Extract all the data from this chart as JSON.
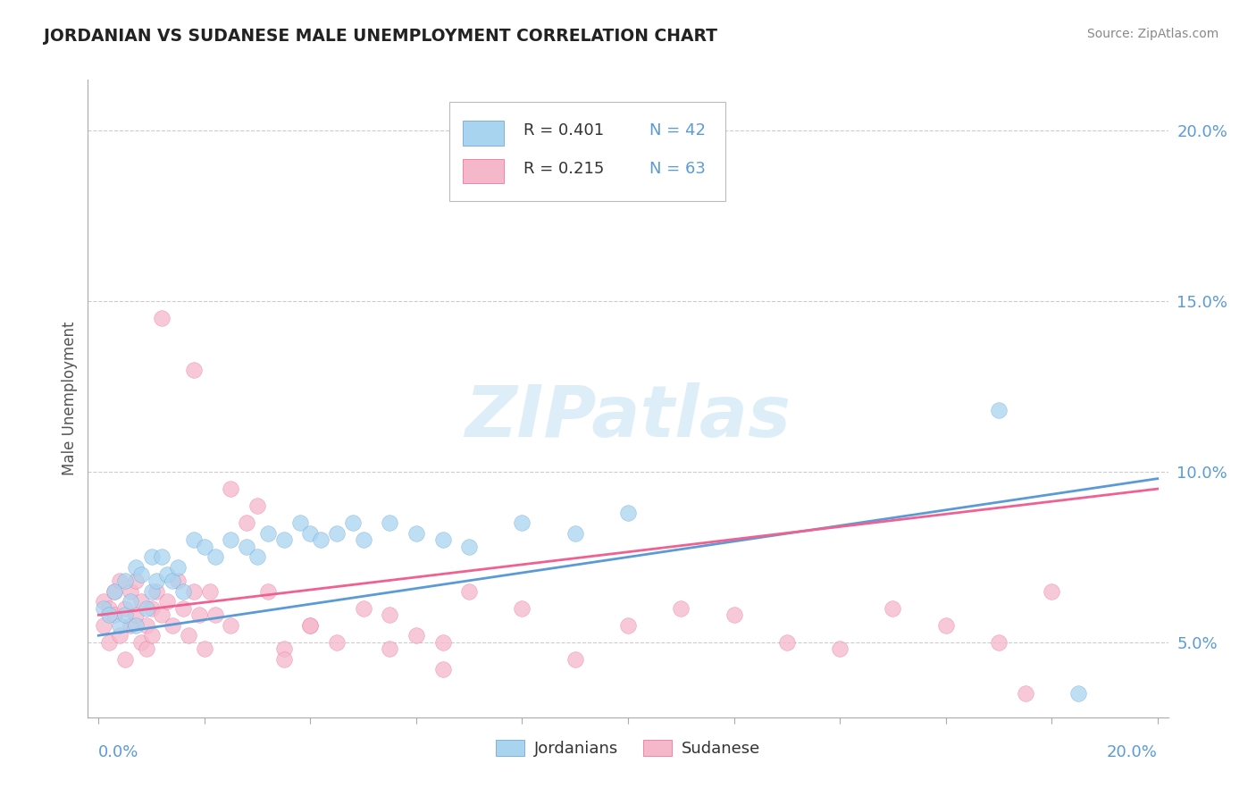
{
  "title": "JORDANIAN VS SUDANESE MALE UNEMPLOYMENT CORRELATION CHART",
  "source": "Source: ZipAtlas.com",
  "ylabel": "Male Unemployment",
  "ylabel_right_ticks": [
    "5.0%",
    "10.0%",
    "15.0%",
    "20.0%"
  ],
  "ylabel_right_values": [
    0.05,
    0.1,
    0.15,
    0.2
  ],
  "xlim": [
    -0.002,
    0.202
  ],
  "ylim": [
    0.028,
    0.215
  ],
  "legend_r1": "R = 0.401",
  "legend_n1": "N = 42",
  "legend_r2": "R = 0.215",
  "legend_n2": "N = 63",
  "color_jordanian": "#a8d4f0",
  "color_sudanese": "#f5b8cb",
  "color_line_jordanian": "#5b9bd5",
  "color_line_sudanese": "#f06090",
  "watermark_color": "#c8e4f5",
  "watermark": "ZIPatlas",
  "jordanian_x": [
    0.001,
    0.002,
    0.003,
    0.004,
    0.005,
    0.005,
    0.006,
    0.007,
    0.007,
    0.008,
    0.009,
    0.01,
    0.01,
    0.011,
    0.012,
    0.013,
    0.014,
    0.015,
    0.016,
    0.018,
    0.02,
    0.022,
    0.025,
    0.028,
    0.03,
    0.032,
    0.035,
    0.038,
    0.04,
    0.042,
    0.045,
    0.048,
    0.05,
    0.055,
    0.06,
    0.065,
    0.07,
    0.08,
    0.09,
    0.1,
    0.17,
    0.185
  ],
  "jordanian_y": [
    0.06,
    0.058,
    0.065,
    0.055,
    0.068,
    0.058,
    0.062,
    0.072,
    0.055,
    0.07,
    0.06,
    0.065,
    0.075,
    0.068,
    0.075,
    0.07,
    0.068,
    0.072,
    0.065,
    0.08,
    0.078,
    0.075,
    0.08,
    0.078,
    0.075,
    0.082,
    0.08,
    0.085,
    0.082,
    0.08,
    0.082,
    0.085,
    0.08,
    0.085,
    0.082,
    0.08,
    0.078,
    0.085,
    0.082,
    0.088,
    0.118,
    0.035
  ],
  "sudanese_x": [
    0.001,
    0.001,
    0.002,
    0.002,
    0.003,
    0.003,
    0.004,
    0.004,
    0.005,
    0.005,
    0.006,
    0.006,
    0.007,
    0.007,
    0.008,
    0.008,
    0.009,
    0.009,
    0.01,
    0.01,
    0.011,
    0.012,
    0.013,
    0.014,
    0.015,
    0.016,
    0.017,
    0.018,
    0.019,
    0.02,
    0.021,
    0.022,
    0.025,
    0.025,
    0.028,
    0.03,
    0.032,
    0.035,
    0.04,
    0.045,
    0.05,
    0.055,
    0.06,
    0.065,
    0.07,
    0.08,
    0.09,
    0.1,
    0.11,
    0.12,
    0.13,
    0.14,
    0.15,
    0.16,
    0.17,
    0.18,
    0.035,
    0.04,
    0.055,
    0.065,
    0.018,
    0.012,
    0.175
  ],
  "sudanese_y": [
    0.062,
    0.055,
    0.06,
    0.05,
    0.058,
    0.065,
    0.052,
    0.068,
    0.06,
    0.045,
    0.065,
    0.055,
    0.058,
    0.068,
    0.05,
    0.062,
    0.055,
    0.048,
    0.06,
    0.052,
    0.065,
    0.058,
    0.062,
    0.055,
    0.068,
    0.06,
    0.052,
    0.065,
    0.058,
    0.048,
    0.065,
    0.058,
    0.095,
    0.055,
    0.085,
    0.09,
    0.065,
    0.048,
    0.055,
    0.05,
    0.06,
    0.058,
    0.052,
    0.05,
    0.065,
    0.06,
    0.045,
    0.055,
    0.06,
    0.058,
    0.05,
    0.048,
    0.06,
    0.055,
    0.05,
    0.065,
    0.045,
    0.055,
    0.048,
    0.042,
    0.13,
    0.145,
    0.035
  ],
  "trend_j_x0": 0.0,
  "trend_j_y0": 0.052,
  "trend_j_x1": 0.2,
  "trend_j_y1": 0.098,
  "trend_s_x0": 0.0,
  "trend_s_y0": 0.058,
  "trend_s_x1": 0.2,
  "trend_s_y1": 0.095
}
